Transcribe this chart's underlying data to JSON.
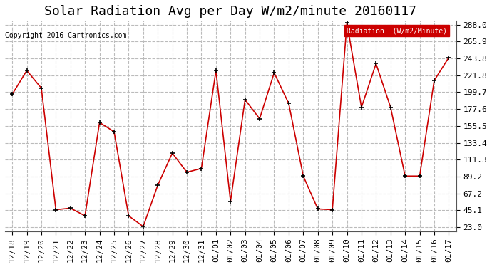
{
  "title": "Solar Radiation Avg per Day W/m2/minute 20160117",
  "copyright": "Copyright 2016 Cartronics.com",
  "legend_label": "Radiation  (W/m2/Minute)",
  "x_labels": [
    "12/18",
    "12/19",
    "12/20",
    "12/21",
    "12/22",
    "12/23",
    "12/24",
    "12/25",
    "12/26",
    "12/27",
    "12/28",
    "12/29",
    "12/30",
    "12/31",
    "01/01",
    "01/02",
    "01/03",
    "01/04",
    "01/05",
    "01/06",
    "01/07",
    "01/08",
    "01/09",
    "01/10",
    "01/11",
    "01/12",
    "01/13",
    "01/14",
    "01/15",
    "01/16",
    "01/17"
  ],
  "values": [
    197.0,
    228.0,
    205.0,
    46.0,
    48.0,
    38.0,
    160.0,
    148.0,
    38.0,
    24.0,
    78.0,
    120.0,
    95.0,
    100.0,
    228.0,
    57.0,
    190.0,
    165.0,
    225.0,
    185.0,
    90.0,
    47.0,
    46.0,
    290.0,
    180.0,
    237.0,
    180.0,
    90.0,
    90.0,
    215.0,
    245.0
  ],
  "y_min": 23.0,
  "y_max": 288.0,
  "y_ticks": [
    23.0,
    45.1,
    67.2,
    89.2,
    111.3,
    133.4,
    155.5,
    177.6,
    199.7,
    221.8,
    243.8,
    265.9,
    288.0
  ],
  "line_color": "#cc0000",
  "marker_color": "#000000",
  "bg_color": "#ffffff",
  "grid_color": "#bbbbbb",
  "legend_bg": "#cc0000",
  "legend_text_color": "#ffffff",
  "title_fontsize": 13,
  "tick_fontsize": 8,
  "copyright_fontsize": 7
}
